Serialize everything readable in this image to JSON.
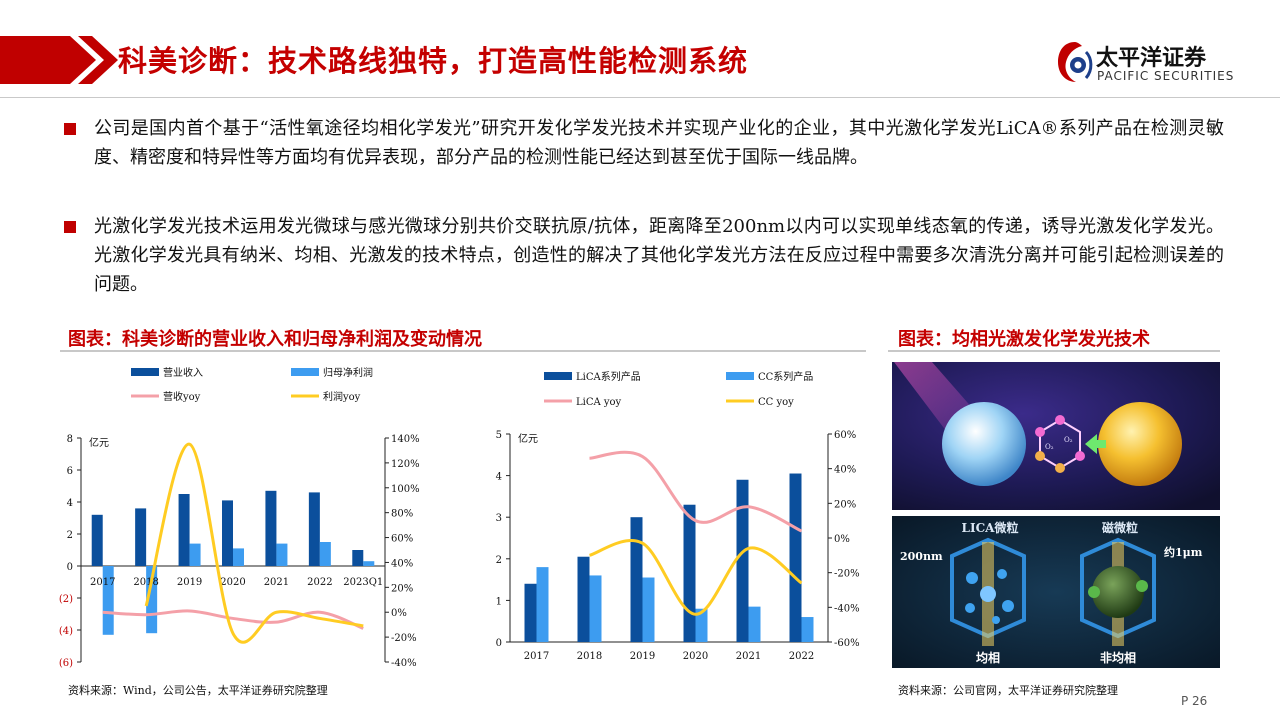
{
  "header": {
    "title": "科美诊断：技术路线独特，打造高性能检测系统",
    "logo_cn": "太平洋证券",
    "logo_en": "PACIFIC SECURITIES"
  },
  "bullets": [
    "公司是国内首个基于“活性氧途径均相化学发光”研究开发化学发光技术并实现产业化的企业，其中光激化学发光LiCA®系列产品在检测灵敏度、精密度和特异性等方面均有优异表现，部分产品的检测性能已经达到甚至优于国际一线品牌。",
    "光激化学发光技术运用发光微球与感光微球分别共价交联抗原/抗体，距离降至200nm以内可以实现单线态氧的传递，诱导光激发化学发光。光激化学发光具有纳米、均相、光激发的技术特点，创造性的解决了其他化学发光方法在反应过程中需要多次清洗分离并可能引起检测误差的问题。"
  ],
  "left_section": {
    "title": "图表：科美诊断的营业收入和归母净利润及变动情况",
    "source": "资料来源：Wind，公司公告，太平洋证券研究院整理"
  },
  "right_section": {
    "title": "图表：均相光激发化学发光技术",
    "source": "资料来源：公司官网，太平洋证券研究院整理",
    "labels": {
      "lica_bead": "LICA微粒",
      "magnetic_bead": "磁微粒",
      "size_200": "200nm",
      "size_1um": "约1μm",
      "homogeneous": "均相",
      "heterogeneous": "非均相",
      "o1": "O₂",
      "o2": "O₂"
    },
    "colors": {
      "sphere_blue": "#9fd4f5",
      "sphere_gold": "#f5c030",
      "bg_dark": "#1a1540"
    }
  },
  "page_number": "P 26",
  "chart_data": [
    {
      "type": "bar",
      "categories": [
        "2017",
        "2018",
        "2019",
        "2020",
        "2021",
        "2022",
        "2023Q1"
      ],
      "unit_label": "亿元",
      "series": [
        {
          "name": "营业收入",
          "axis": "left",
          "color": "#0b4f9c",
          "values": [
            3.2,
            3.6,
            4.5,
            4.1,
            4.7,
            4.6,
            1.0
          ]
        },
        {
          "name": "归母净利润",
          "axis": "left",
          "color": "#3d9cf0",
          "values": [
            -4.3,
            -4.2,
            1.4,
            1.1,
            1.4,
            1.5,
            0.3
          ]
        },
        {
          "name": "营收yoy",
          "axis": "right",
          "type": "line",
          "color": "#f4a0a8",
          "values": [
            0.0,
            -0.02,
            0.01,
            -0.05,
            -0.08,
            0.0,
            -0.13
          ]
        },
        {
          "name": "利润yoy",
          "axis": "right",
          "type": "line",
          "color": "#ffcc22",
          "values": [
            null,
            0.05,
            1.35,
            -0.17,
            0.0,
            -0.05,
            -0.11
          ]
        }
      ],
      "ylim_left": [
        -6,
        8
      ],
      "yticks_left": [
        "(6)",
        "(4)",
        "(2)",
        "0",
        "2",
        "4",
        "6",
        "8"
      ],
      "ylim_right": [
        -0.4,
        1.4
      ],
      "yticks_right": [
        "-40%",
        "-20%",
        "0%",
        "20%",
        "40%",
        "60%",
        "80%",
        "100%",
        "120%",
        "140%"
      ],
      "legend_position": "top"
    },
    {
      "type": "bar",
      "categories": [
        "2017",
        "2018",
        "2019",
        "2020",
        "2021",
        "2022"
      ],
      "unit_label": "亿元",
      "series": [
        {
          "name": "LiCA系列产品",
          "axis": "left",
          "color": "#0b4f9c",
          "values": [
            1.4,
            2.05,
            3.0,
            3.3,
            3.9,
            4.05
          ]
        },
        {
          "name": "CC系列产品",
          "axis": "left",
          "color": "#3d9cf0",
          "values": [
            1.8,
            1.6,
            1.55,
            0.8,
            0.85,
            0.6
          ]
        },
        {
          "name": "LiCA yoy",
          "axis": "right",
          "type": "line",
          "color": "#f4a0a8",
          "values": [
            null,
            0.46,
            0.47,
            0.1,
            0.18,
            0.04
          ]
        },
        {
          "name": "CC yoy",
          "axis": "right",
          "type": "line",
          "color": "#ffcc22",
          "values": [
            null,
            -0.1,
            -0.03,
            -0.44,
            -0.06,
            -0.26
          ]
        }
      ],
      "ylim_left": [
        0,
        5
      ],
      "yticks_left": [
        "0",
        "1",
        "2",
        "3",
        "4",
        "5"
      ],
      "ylim_right": [
        -0.6,
        0.6
      ],
      "yticks_right": [
        "-60%",
        "-40%",
        "-20%",
        "0%",
        "20%",
        "40%",
        "60%"
      ],
      "legend_position": "top"
    }
  ]
}
